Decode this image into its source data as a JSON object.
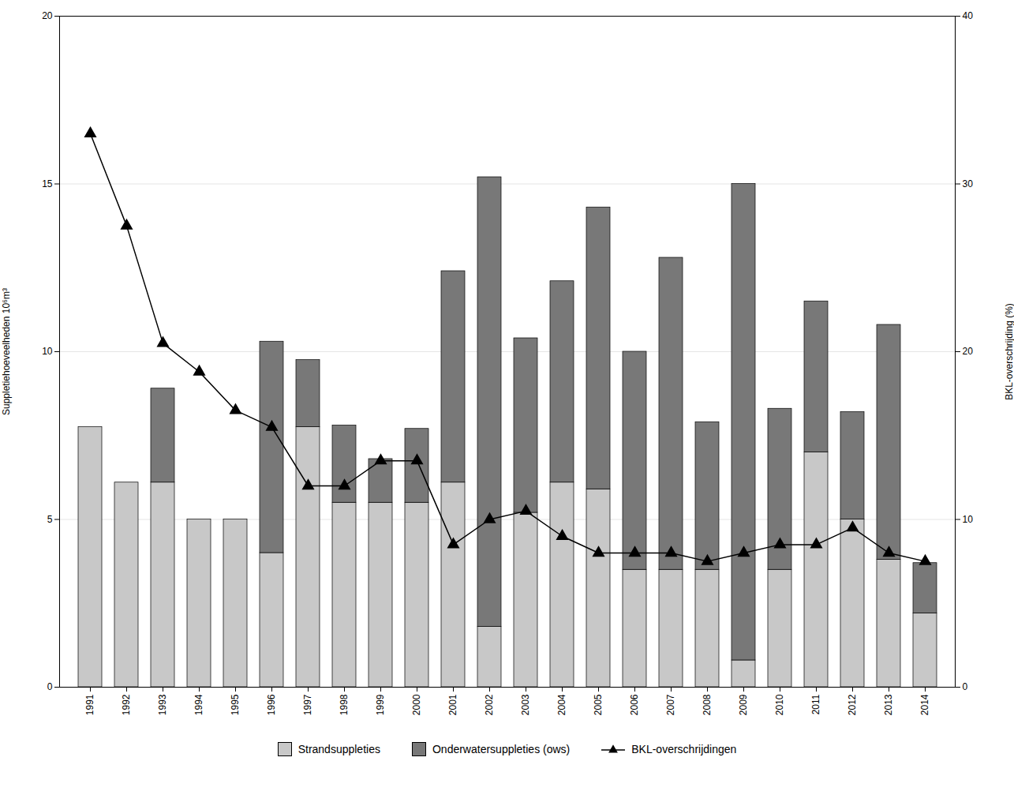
{
  "chart_data": {
    "type": "bar",
    "categories": [
      "1991",
      "1992",
      "1993",
      "1994",
      "1995",
      "1996",
      "1997",
      "1998",
      "1999",
      "2000",
      "2001",
      "2002",
      "2003",
      "2004",
      "2005",
      "2006",
      "2007",
      "2008",
      "2009",
      "2010",
      "2011",
      "2012",
      "2013",
      "2014"
    ],
    "series": [
      {
        "name": "Strandsuppleties",
        "type": "bar",
        "color": "#c8c8c8",
        "values": [
          7.75,
          6.1,
          6.1,
          5.0,
          5.0,
          4.0,
          7.75,
          5.5,
          5.5,
          5.5,
          6.1,
          1.8,
          5.2,
          6.1,
          5.9,
          3.5,
          3.5,
          3.5,
          0.8,
          3.5,
          7.0,
          5.0,
          3.8,
          2.2
        ]
      },
      {
        "name": "Onderwatersuppleties (ows)",
        "type": "bar",
        "color": "#787878",
        "values": [
          0.0,
          0.0,
          2.8,
          0.0,
          0.0,
          6.3,
          2.0,
          2.3,
          1.3,
          2.2,
          6.3,
          13.4,
          5.2,
          6.0,
          8.4,
          6.5,
          9.3,
          4.4,
          14.2,
          4.8,
          4.5,
          3.2,
          7.0,
          1.5
        ]
      },
      {
        "name": "BKL-overschrijdingen",
        "type": "line",
        "axis": "y2",
        "color": "#000000",
        "marker": "triangle",
        "values": [
          33.0,
          27.5,
          20.5,
          18.8,
          16.5,
          15.5,
          12.0,
          12.0,
          13.5,
          13.5,
          8.5,
          10.0,
          10.5,
          9.0,
          8.0,
          8.0,
          8.0,
          7.5,
          8.0,
          8.5,
          8.5,
          9.5,
          8.0,
          7.5
        ]
      }
    ],
    "stacked": true,
    "ylabel": "Suppletiehoeveelheden 10⁶m³",
    "y2label": "BKL-overschrijding (%)",
    "ylim": [
      0,
      20
    ],
    "yticks": [
      0,
      5,
      10,
      15,
      20
    ],
    "y2lim": [
      0,
      40
    ],
    "y2ticks": [
      0,
      10,
      20,
      30,
      40
    ],
    "grid": true,
    "legend": "bottom"
  }
}
